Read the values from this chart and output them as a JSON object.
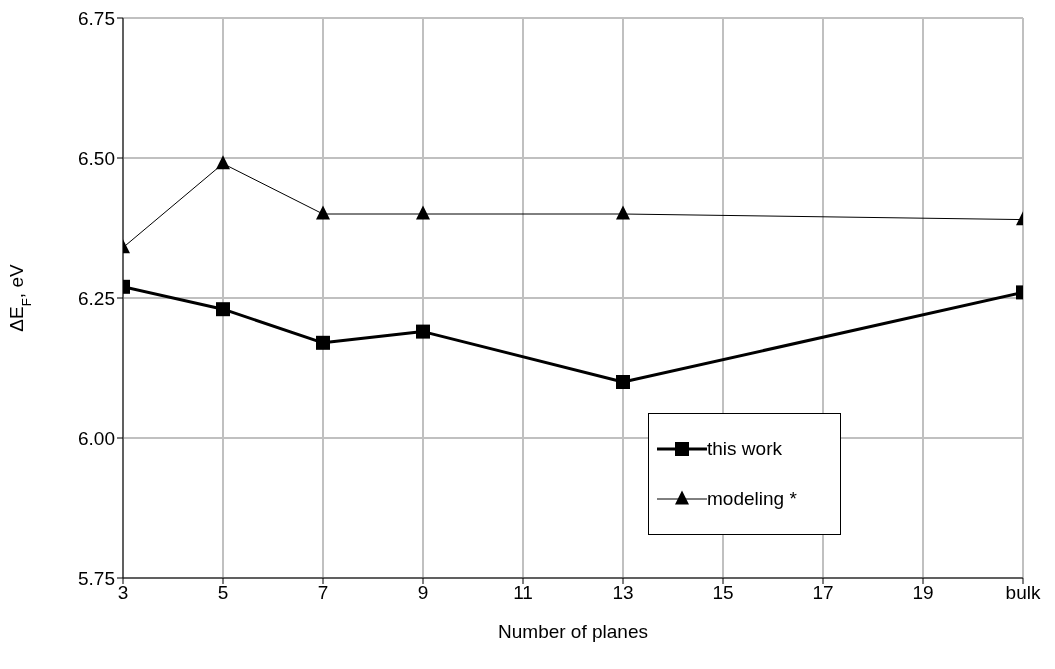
{
  "chart_data": {
    "type": "line",
    "xlabel": "Number of planes",
    "ylabel": "ΔE$_{F}$, eV",
    "x": [
      3,
      5,
      7,
      9,
      13,
      21
    ],
    "xlim": [
      3,
      21
    ],
    "xticks": [
      3,
      5,
      7,
      9,
      11,
      13,
      15,
      17,
      19,
      {
        "value": 21,
        "label": "bulk"
      }
    ],
    "ylim": [
      5.75,
      6.75
    ],
    "yticks": [
      {
        "value": 5.75,
        "label": "5.75"
      },
      {
        "value": 6,
        "label": "6.00"
      },
      {
        "value": 6.25,
        "label": "6.25"
      },
      {
        "value": 6.5,
        "label": "6.50"
      },
      {
        "value": 6.75,
        "label": "6.75"
      }
    ],
    "grid": true,
    "legend": "bottom right",
    "line_style": "solid",
    "series": [
      {
        "name": "this work",
        "color": "#000000",
        "marker": "square",
        "values": [
          6.27,
          6.23,
          6.17,
          6.19,
          6.1,
          6.26
        ]
      },
      {
        "name": "modeling *",
        "color": "#000000",
        "marker": "triangle",
        "values": [
          6.34,
          6.49,
          6.4,
          6.4,
          6.4,
          6.39
        ]
      }
    ]
  }
}
